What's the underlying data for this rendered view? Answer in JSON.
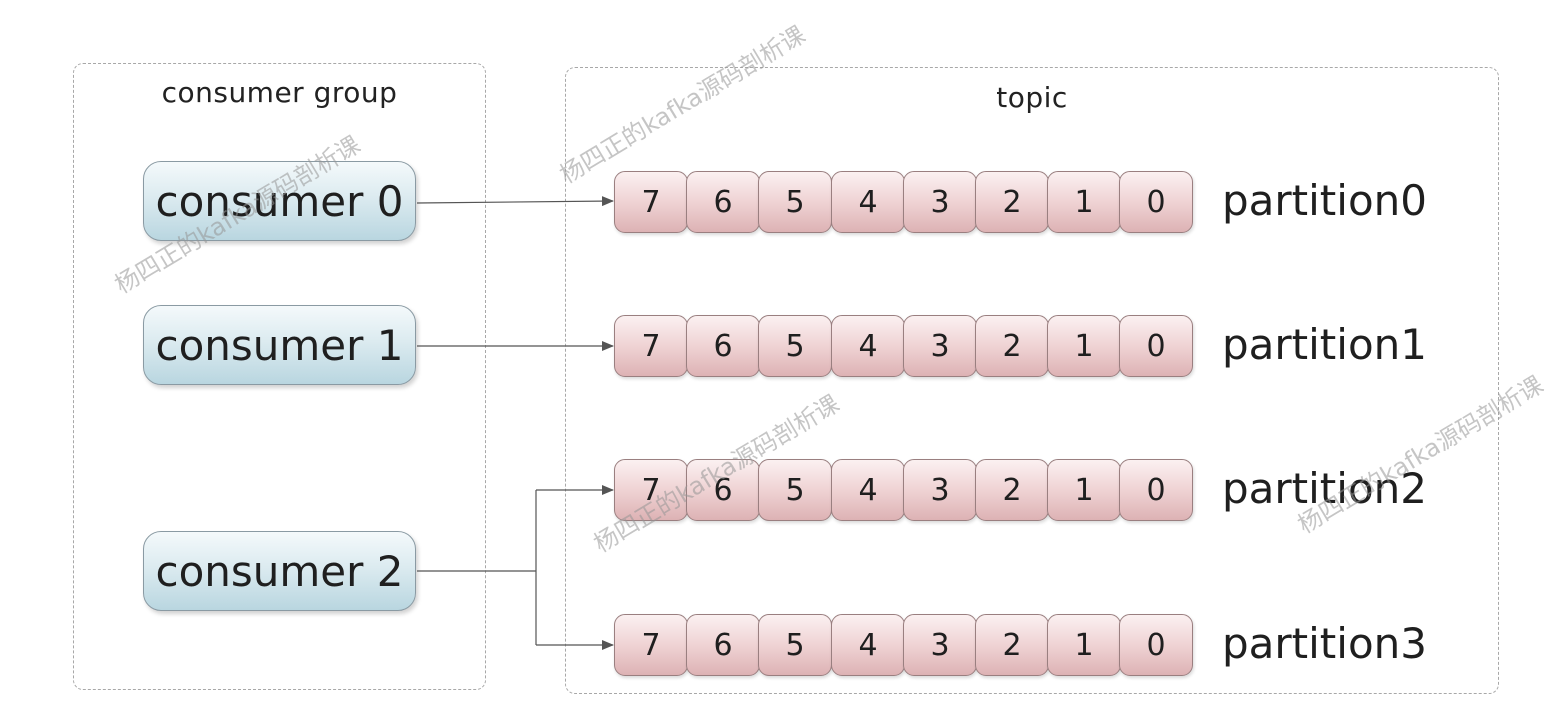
{
  "consumer_group": {
    "title": "consumer group",
    "consumers": [
      {
        "label": "consumer 0"
      },
      {
        "label": "consumer 1"
      },
      {
        "label": "consumer 2"
      }
    ]
  },
  "topic": {
    "title": "topic",
    "partitions": [
      {
        "label": "partition0",
        "offsets": [
          "7",
          "6",
          "5",
          "4",
          "3",
          "2",
          "1",
          "0"
        ]
      },
      {
        "label": "partition1",
        "offsets": [
          "7",
          "6",
          "5",
          "4",
          "3",
          "2",
          "1",
          "0"
        ]
      },
      {
        "label": "partition2",
        "offsets": [
          "7",
          "6",
          "5",
          "4",
          "3",
          "2",
          "1",
          "0"
        ]
      },
      {
        "label": "partition3",
        "offsets": [
          "7",
          "6",
          "5",
          "4",
          "3",
          "2",
          "1",
          "0"
        ]
      }
    ]
  },
  "assignments": [
    {
      "consumer": "consumer 0",
      "partitions": [
        "partition0"
      ]
    },
    {
      "consumer": "consumer 1",
      "partitions": [
        "partition1"
      ]
    },
    {
      "consumer": "consumer 2",
      "partitions": [
        "partition2",
        "partition3"
      ]
    }
  ],
  "watermark": {
    "text": "杨四正的kafka源码剖析课"
  },
  "colors": {
    "consumer_fill": "#c9e0e8",
    "partition_cell_fill": "#e8c4c5",
    "connector": "#555555",
    "dashed_border": "#a8a8a8"
  }
}
